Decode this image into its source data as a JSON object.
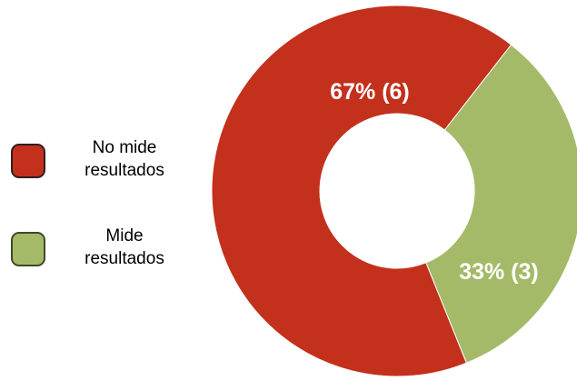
{
  "chart_data": {
    "type": "pie",
    "donut": true,
    "slices": [
      {
        "label": "No mide resultados",
        "value": 6,
        "percent": 67,
        "data_label": "67%  (6)",
        "color": "#C3301C"
      },
      {
        "label": "Mide resultados",
        "value": 3,
        "percent": 33,
        "data_label": "33%  (3)",
        "color": "#A5BA68"
      }
    ],
    "legend": {
      "position": "left",
      "items": [
        {
          "label": "No mide\nresultados",
          "color": "#C3301C",
          "border": "#2E1F1F"
        },
        {
          "label": "Mide\nresultados",
          "color": "#A5BA68",
          "border": "#3C4A28"
        }
      ]
    }
  }
}
